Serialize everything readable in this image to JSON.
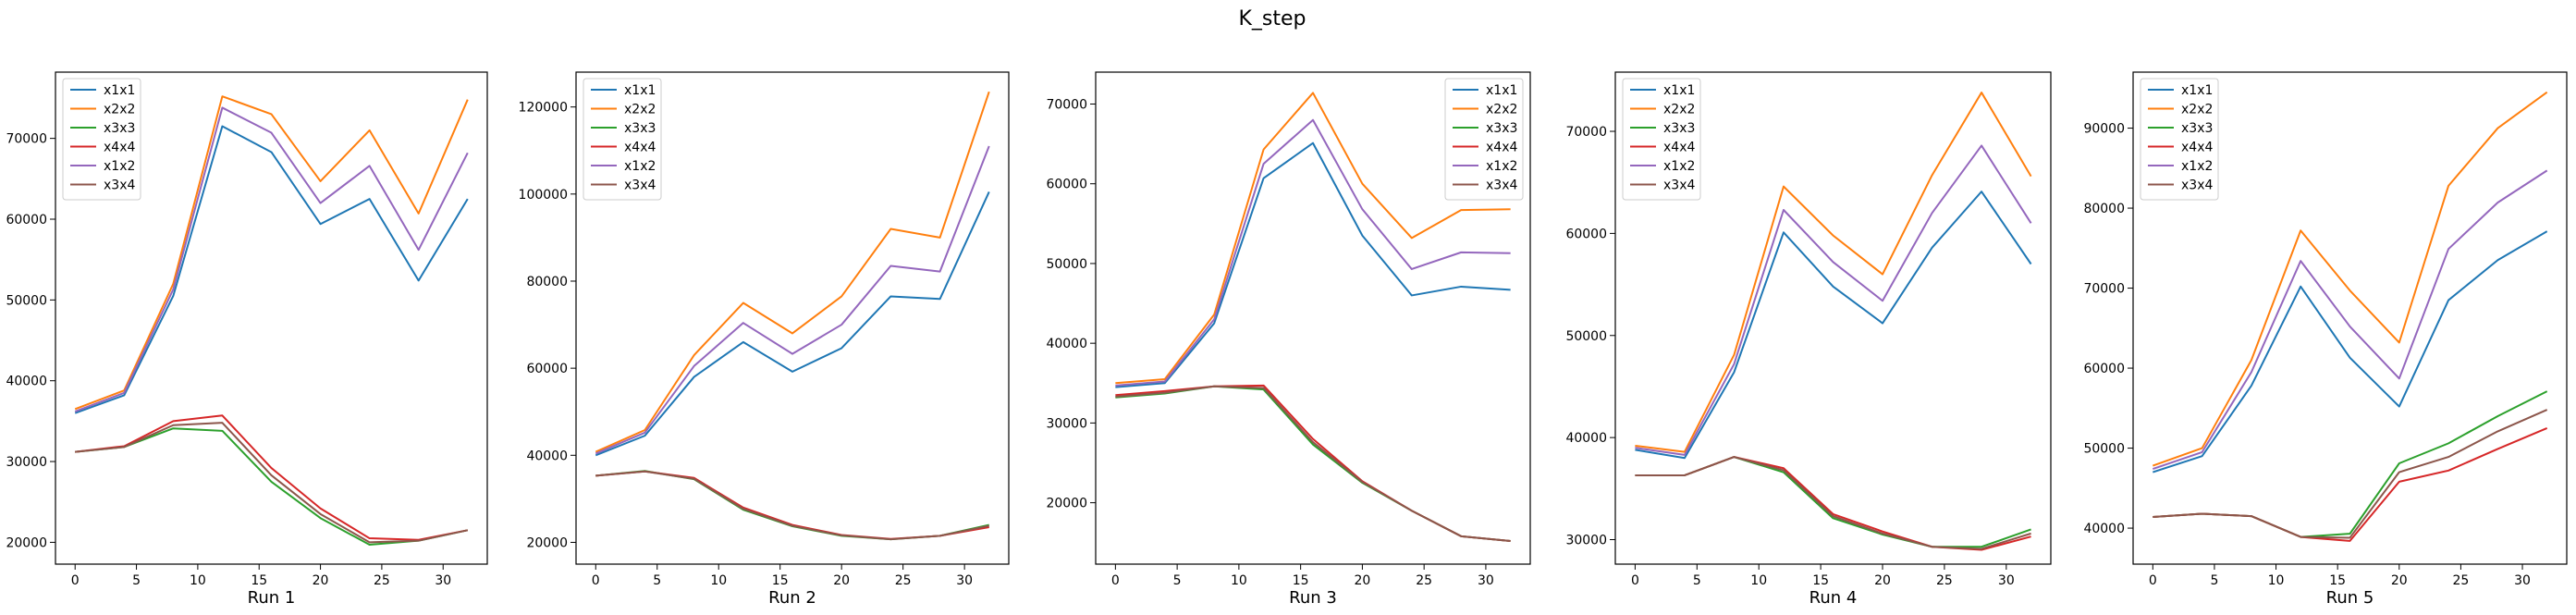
{
  "figure": {
    "title": "K_step"
  },
  "colors": {
    "x1x1": "#1f77b4",
    "x2x2": "#ff7f0e",
    "x3x3": "#2ca02c",
    "x4x4": "#d62728",
    "x1x2": "#9467bd",
    "x3x4": "#8c564b"
  },
  "chart_data": [
    {
      "type": "line",
      "xlabel": "Run 1",
      "x": [
        0,
        4,
        8,
        12,
        16,
        20,
        24,
        28,
        32
      ],
      "xticks": [
        0,
        5,
        10,
        15,
        20,
        25,
        30
      ],
      "yticks": [
        20000,
        30000,
        40000,
        50000,
        60000,
        70000
      ],
      "xlim": [
        -1.6,
        33.6
      ],
      "ylim": [
        17300,
        78200
      ],
      "legend": "top-left",
      "series": [
        {
          "name": "x1x1",
          "values": [
            36000,
            38200,
            50500,
            71500,
            68300,
            59400,
            62500,
            52400,
            62500
          ]
        },
        {
          "name": "x2x2",
          "values": [
            36500,
            38800,
            52000,
            75200,
            73000,
            64700,
            71000,
            60700,
            74800
          ]
        },
        {
          "name": "x3x3",
          "values": [
            31200,
            31800,
            34100,
            33800,
            27500,
            23000,
            19700,
            20200,
            21500
          ]
        },
        {
          "name": "x4x4",
          "values": [
            31200,
            31900,
            35000,
            35700,
            29200,
            24200,
            20500,
            20300,
            21500
          ]
        },
        {
          "name": "x1x2",
          "values": [
            36200,
            38500,
            51300,
            73800,
            70700,
            62000,
            66600,
            56200,
            68200
          ]
        },
        {
          "name": "x3x4",
          "values": [
            31200,
            31800,
            34500,
            34800,
            28300,
            23500,
            20000,
            20200,
            21500
          ]
        }
      ]
    },
    {
      "type": "line",
      "xlabel": "Run 2",
      "x": [
        0,
        4,
        8,
        12,
        16,
        20,
        24,
        28,
        32
      ],
      "xticks": [
        0,
        5,
        10,
        15,
        20,
        25,
        30
      ],
      "yticks": [
        20000,
        40000,
        60000,
        80000,
        100000,
        120000
      ],
      "xlim": [
        -1.6,
        33.6
      ],
      "ylim": [
        15000,
        128000
      ],
      "legend": "top-left",
      "series": [
        {
          "name": "x1x1",
          "values": [
            40000,
            44500,
            58000,
            66000,
            59200,
            64600,
            76500,
            75900,
            100500
          ]
        },
        {
          "name": "x2x2",
          "values": [
            40800,
            45800,
            63000,
            75000,
            68000,
            76500,
            92000,
            90000,
            123500
          ]
        },
        {
          "name": "x3x3",
          "values": [
            35300,
            36400,
            34500,
            27500,
            23700,
            21500,
            20700,
            21500,
            24000
          ]
        },
        {
          "name": "x4x4",
          "values": [
            35300,
            36300,
            34800,
            28000,
            24000,
            21700,
            20800,
            21500,
            23500
          ]
        },
        {
          "name": "x1x2",
          "values": [
            40400,
            45200,
            60500,
            70400,
            63300,
            70000,
            83500,
            82200,
            111000
          ]
        },
        {
          "name": "x3x4",
          "values": [
            35300,
            36300,
            34600,
            27700,
            23800,
            21600,
            20700,
            21500,
            23800
          ]
        }
      ]
    },
    {
      "type": "line",
      "xlabel": "Run 3",
      "x": [
        0,
        4,
        8,
        12,
        16,
        20,
        24,
        28,
        32
      ],
      "xticks": [
        0,
        5,
        10,
        15,
        20,
        25,
        30
      ],
      "yticks": [
        20000,
        30000,
        40000,
        50000,
        60000,
        70000
      ],
      "xlim": [
        -1.6,
        33.6
      ],
      "ylim": [
        12300,
        74000
      ],
      "legend": "top-right",
      "series": [
        {
          "name": "x1x1",
          "values": [
            34500,
            35000,
            42500,
            60700,
            65100,
            53500,
            46000,
            47100,
            46700
          ]
        },
        {
          "name": "x2x2",
          "values": [
            35000,
            35500,
            43600,
            64300,
            71400,
            60000,
            53200,
            56700,
            56800
          ]
        },
        {
          "name": "x3x3",
          "values": [
            33200,
            33700,
            34600,
            34200,
            27300,
            22500,
            19000,
            15800,
            15200
          ]
        },
        {
          "name": "x4x4",
          "values": [
            33500,
            34000,
            34600,
            34700,
            28000,
            22700,
            19000,
            15800,
            15200
          ]
        },
        {
          "name": "x1x2",
          "values": [
            34700,
            35200,
            43000,
            62500,
            68000,
            56800,
            49300,
            51400,
            51300
          ]
        },
        {
          "name": "x3x4",
          "values": [
            33300,
            33800,
            34600,
            34400,
            27600,
            22600,
            19000,
            15800,
            15200
          ]
        }
      ]
    },
    {
      "type": "line",
      "xlabel": "Run 4",
      "x": [
        0,
        4,
        8,
        12,
        16,
        20,
        24,
        28,
        32
      ],
      "xticks": [
        0,
        5,
        10,
        15,
        20,
        25,
        30
      ],
      "yticks": [
        30000,
        40000,
        50000,
        60000,
        70000
      ],
      "xlim": [
        -1.6,
        33.6
      ],
      "ylim": [
        27600,
        75800
      ],
      "legend": "top-left",
      "series": [
        {
          "name": "x1x1",
          "values": [
            38800,
            38000,
            46400,
            60100,
            54800,
            51200,
            58600,
            64100,
            57000
          ]
        },
        {
          "name": "x2x2",
          "values": [
            39200,
            38600,
            48100,
            64600,
            59800,
            56000,
            65700,
            73800,
            65600
          ]
        },
        {
          "name": "x3x3",
          "values": [
            36300,
            36300,
            38100,
            36600,
            32100,
            30500,
            29300,
            29300,
            31000
          ]
        },
        {
          "name": "x4x4",
          "values": [
            36300,
            36300,
            38100,
            37000,
            32500,
            30800,
            29300,
            29000,
            30300
          ]
        },
        {
          "name": "x1x2",
          "values": [
            39000,
            38300,
            47200,
            62300,
            57200,
            53400,
            62000,
            68600,
            61000
          ]
        },
        {
          "name": "x3x4",
          "values": [
            36300,
            36300,
            38100,
            36800,
            32300,
            30600,
            29300,
            29100,
            30600
          ]
        }
      ]
    },
    {
      "type": "line",
      "xlabel": "Run 5",
      "x": [
        0,
        4,
        8,
        12,
        16,
        20,
        24,
        28,
        32
      ],
      "xticks": [
        0,
        5,
        10,
        15,
        20,
        25,
        30
      ],
      "yticks": [
        40000,
        50000,
        60000,
        70000,
        80000,
        90000
      ],
      "xlim": [
        -1.6,
        33.6
      ],
      "ylim": [
        35500,
        97000
      ],
      "legend": "top-left",
      "series": [
        {
          "name": "x1x1",
          "values": [
            47000,
            49000,
            57800,
            70200,
            61300,
            55200,
            68500,
            73500,
            77100
          ]
        },
        {
          "name": "x2x2",
          "values": [
            47800,
            50000,
            61000,
            77200,
            69700,
            63200,
            82800,
            90000,
            94500
          ]
        },
        {
          "name": "x3x3",
          "values": [
            41400,
            41800,
            41500,
            38900,
            39300,
            48100,
            50600,
            54000,
            57100
          ]
        },
        {
          "name": "x4x4",
          "values": [
            41400,
            41800,
            41500,
            38900,
            38400,
            45800,
            47200,
            49900,
            52500
          ]
        },
        {
          "name": "x1x2",
          "values": [
            47400,
            49500,
            59500,
            73400,
            65200,
            58700,
            74900,
            80700,
            84700
          ]
        },
        {
          "name": "x3x4",
          "values": [
            41400,
            41800,
            41500,
            38900,
            38800,
            47000,
            48900,
            52100,
            54800
          ]
        }
      ]
    }
  ]
}
